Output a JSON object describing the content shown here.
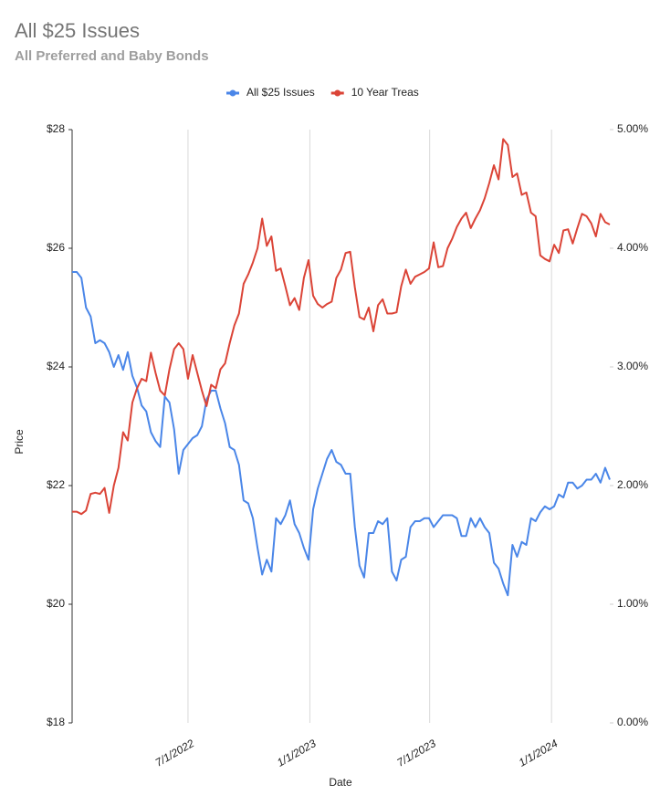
{
  "chart_data": {
    "type": "line",
    "title": "All $25 Issues",
    "subtitle": "All Preferred and Baby Bonds",
    "x_label": "Date",
    "y_label": "Price",
    "grid": true,
    "legend": "top",
    "x": [
      "2022-01-07",
      "2022-01-14",
      "2022-01-21",
      "2022-01-28",
      "2022-02-04",
      "2022-02-11",
      "2022-02-18",
      "2022-02-25",
      "2022-03-04",
      "2022-03-11",
      "2022-03-18",
      "2022-03-25",
      "2022-04-01",
      "2022-04-08",
      "2022-04-15",
      "2022-04-22",
      "2022-04-29",
      "2022-05-06",
      "2022-05-13",
      "2022-05-20",
      "2022-05-27",
      "2022-06-03",
      "2022-06-10",
      "2022-06-17",
      "2022-06-24",
      "2022-07-01",
      "2022-07-08",
      "2022-07-15",
      "2022-07-22",
      "2022-07-29",
      "2022-08-05",
      "2022-08-12",
      "2022-08-19",
      "2022-08-26",
      "2022-09-02",
      "2022-09-09",
      "2022-09-16",
      "2022-09-23",
      "2022-09-30",
      "2022-10-07",
      "2022-10-14",
      "2022-10-21",
      "2022-10-28",
      "2022-11-04",
      "2022-11-11",
      "2022-11-18",
      "2022-11-25",
      "2022-12-02",
      "2022-12-09",
      "2022-12-16",
      "2022-12-23",
      "2022-12-30",
      "2023-01-06",
      "2023-01-13",
      "2023-01-20",
      "2023-01-27",
      "2023-02-03",
      "2023-02-10",
      "2023-02-17",
      "2023-02-24",
      "2023-03-03",
      "2023-03-10",
      "2023-03-17",
      "2023-03-24",
      "2023-03-31",
      "2023-04-07",
      "2023-04-14",
      "2023-04-21",
      "2023-04-28",
      "2023-05-05",
      "2023-05-12",
      "2023-05-19",
      "2023-05-26",
      "2023-06-02",
      "2023-06-09",
      "2023-06-16",
      "2023-06-23",
      "2023-06-30",
      "2023-07-07",
      "2023-07-14",
      "2023-07-21",
      "2023-07-28",
      "2023-08-04",
      "2023-08-11",
      "2023-08-18",
      "2023-08-25",
      "2023-09-01",
      "2023-09-08",
      "2023-09-15",
      "2023-09-22",
      "2023-09-29",
      "2023-10-06",
      "2023-10-13",
      "2023-10-20",
      "2023-10-27",
      "2023-11-03",
      "2023-11-10",
      "2023-11-17",
      "2023-11-24",
      "2023-12-01",
      "2023-12-08",
      "2023-12-15",
      "2023-12-22",
      "2023-12-29",
      "2024-01-05",
      "2024-01-12",
      "2024-01-19",
      "2024-01-26",
      "2024-02-02",
      "2024-02-09",
      "2024-02-16",
      "2024-02-23",
      "2024-03-01",
      "2024-03-08",
      "2024-03-15",
      "2024-03-22",
      "2024-03-29"
    ],
    "xlim": [
      "2022-01-07",
      "2024-03-29"
    ],
    "xticks": [
      {
        "value": "2022-07-01",
        "label": "7/1/2022"
      },
      {
        "value": "2023-01-01",
        "label": "1/1/2023"
      },
      {
        "value": "2023-07-01",
        "label": "7/1/2023"
      },
      {
        "value": "2024-01-01",
        "label": "1/1/2024"
      }
    ],
    "ylim": [
      18,
      28
    ],
    "yticks": [
      {
        "value": 18,
        "label": "$18"
      },
      {
        "value": 20,
        "label": "$20"
      },
      {
        "value": 22,
        "label": "$22"
      },
      {
        "value": 24,
        "label": "$24"
      },
      {
        "value": 26,
        "label": "$26"
      },
      {
        "value": 28,
        "label": "$28"
      }
    ],
    "y2lim": [
      0,
      5
    ],
    "y2ticks": [
      {
        "value": 0,
        "label": "0.00%"
      },
      {
        "value": 1,
        "label": "1.00%"
      },
      {
        "value": 2,
        "label": "2.00%"
      },
      {
        "value": 3,
        "label": "3.00%"
      },
      {
        "value": 4,
        "label": "4.00%"
      },
      {
        "value": 5,
        "label": "5.00%"
      }
    ],
    "series": [
      {
        "name": "All $25 Issues",
        "color": "#4a86e8",
        "values": [
          25.6,
          25.6,
          25.5,
          25.0,
          24.85,
          24.4,
          24.45,
          24.4,
          24.25,
          24.0,
          24.2,
          23.95,
          24.25,
          23.85,
          23.65,
          23.35,
          23.25,
          22.9,
          22.75,
          22.65,
          23.5,
          23.4,
          22.95,
          22.2,
          22.6,
          22.7,
          22.8,
          22.85,
          23.0,
          23.45,
          23.6,
          23.6,
          23.3,
          23.05,
          22.65,
          22.6,
          22.35,
          21.75,
          21.7,
          21.45,
          20.95,
          20.5,
          20.75,
          20.55,
          21.45,
          21.35,
          21.5,
          21.75,
          21.35,
          21.2,
          20.95,
          20.75,
          21.6,
          21.95,
          22.2,
          22.45,
          22.6,
          22.4,
          22.35,
          22.2,
          22.2,
          21.3,
          20.65,
          20.45,
          21.2,
          21.2,
          21.4,
          21.35,
          21.45,
          20.55,
          20.4,
          20.75,
          20.8,
          21.3,
          21.4,
          21.4,
          21.45,
          21.45,
          21.3,
          21.4,
          21.5,
          21.5,
          21.5,
          21.45,
          21.15,
          21.15,
          21.45,
          21.3,
          21.45,
          21.3,
          21.2,
          20.7,
          20.6,
          20.35,
          20.15,
          21.0,
          20.8,
          21.05,
          21.0,
          21.45,
          21.4,
          21.55,
          21.65,
          21.6,
          21.65,
          21.85,
          21.8,
          22.05,
          22.05,
          21.95,
          22.0,
          22.1,
          22.1,
          22.2,
          22.05,
          22.3,
          22.1
        ]
      },
      {
        "name": "10 Year Treas",
        "color": "#db4437",
        "axis": "y2",
        "values": [
          1.78,
          1.78,
          1.76,
          1.79,
          1.93,
          1.94,
          1.93,
          1.98,
          1.77,
          2.0,
          2.15,
          2.45,
          2.38,
          2.7,
          2.82,
          2.9,
          2.88,
          3.12,
          2.95,
          2.8,
          2.76,
          2.98,
          3.15,
          3.2,
          3.15,
          2.9,
          3.1,
          2.95,
          2.8,
          2.67,
          2.85,
          2.82,
          2.98,
          3.03,
          3.2,
          3.35,
          3.45,
          3.7,
          3.78,
          3.88,
          4.0,
          4.25,
          4.02,
          4.1,
          3.81,
          3.83,
          3.68,
          3.52,
          3.58,
          3.48,
          3.75,
          3.9,
          3.6,
          3.53,
          3.5,
          3.53,
          3.55,
          3.75,
          3.82,
          3.96,
          3.97,
          3.67,
          3.42,
          3.4,
          3.5,
          3.3,
          3.52,
          3.57,
          3.45,
          3.45,
          3.46,
          3.68,
          3.82,
          3.7,
          3.76,
          3.78,
          3.8,
          3.83,
          4.05,
          3.84,
          3.85,
          4.0,
          4.08,
          4.18,
          4.25,
          4.3,
          4.17,
          4.25,
          4.32,
          4.42,
          4.55,
          4.7,
          4.58,
          4.92,
          4.87,
          4.6,
          4.63,
          4.45,
          4.47,
          4.3,
          4.27,
          3.94,
          3.91,
          3.89,
          4.03,
          3.96,
          4.15,
          4.16,
          4.04,
          4.17,
          4.29,
          4.27,
          4.21,
          4.1,
          4.29,
          4.22,
          4.2
        ]
      }
    ]
  }
}
